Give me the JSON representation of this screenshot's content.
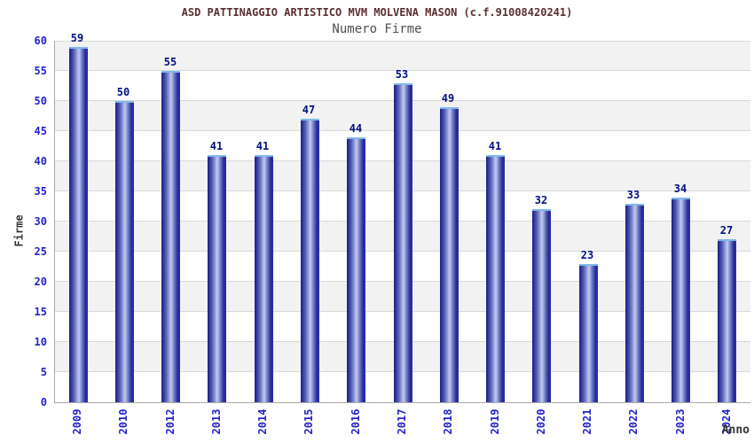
{
  "chart_data": {
    "type": "bar",
    "main_title": "ASD PATTINAGGIO ARTISTICO MVM MOLVENA MASON (c.f.91008420241)",
    "subtitle": "Numero Firme",
    "categories": [
      "2009",
      "2010",
      "2012",
      "2013",
      "2014",
      "2015",
      "2016",
      "2017",
      "2018",
      "2019",
      "2020",
      "2021",
      "2022",
      "2023",
      "2024"
    ],
    "values": [
      59,
      50,
      55,
      41,
      41,
      47,
      44,
      53,
      49,
      41,
      32,
      23,
      33,
      34,
      27
    ],
    "xlabel": "Anno",
    "ylabel": "Firme",
    "ylim": [
      0,
      60
    ],
    "ytick_step": 5,
    "ytick_labels": [
      "0",
      "5",
      "10",
      "15",
      "20",
      "25",
      "30",
      "35",
      "40",
      "45",
      "50",
      "55",
      "60"
    ],
    "grid": "horizontal gridlines every 5 units with alternating gray/white bands",
    "legend_position": "none",
    "bar_value_labels_shown": true
  },
  "style": {
    "title_color": "#5c2e2e",
    "subtitle_color": "#4f4f4f",
    "tick_label_color": "#2222cc",
    "value_label_color": "#001080",
    "axis_title_color": "#333333",
    "axis_line_color": "#aaaaaa",
    "gridline_color": "#d9d9d9",
    "band_gray": "#f2f2f2",
    "band_white": "#ffffff",
    "bar_dark": "#1f1f7d",
    "bar_mid": "#99a3dc",
    "bar_highlight": "#c5cbf0",
    "bar_right_edge": "#2b3ad0",
    "bar_cap": "#7fb9e8"
  }
}
